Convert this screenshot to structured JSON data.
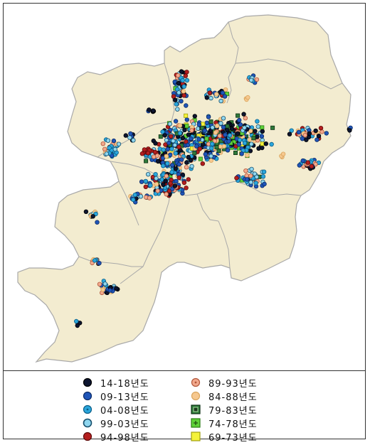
{
  "legend": {
    "items": [
      {
        "label": "14-18년도",
        "fill": "#0d1530",
        "border": "#000000",
        "marker": "dot"
      },
      {
        "label": "09-13년도",
        "fill": "#1f55b8",
        "border": "#0c2a66",
        "marker": "dot"
      },
      {
        "label": "04-08년도",
        "fill": "#2aa6dc",
        "border": "#0b5d86",
        "marker": "dot-center"
      },
      {
        "label": "99-03년도",
        "fill": "#8fd6ef",
        "border": "#174f6c",
        "marker": "ring"
      },
      {
        "label": "94-98년도",
        "fill": "#b41e1e",
        "border": "#5e0a0a",
        "marker": "dot"
      },
      {
        "label": "89-93년도",
        "fill": "#f2a98d",
        "border": "#b0563a",
        "marker": "dot-center"
      },
      {
        "label": "84-88년도",
        "fill": "#f6c88f",
        "border": "#d9a55e",
        "marker": "dot"
      },
      {
        "label": "79-83년도",
        "fill": "#2f7a3a",
        "border": "#0e3014",
        "marker": "square-inner"
      },
      {
        "label": "74-78년도",
        "fill": "#5fd23a",
        "border": "#2b7d14",
        "marker": "square-plus"
      },
      {
        "label": "69-73년도",
        "fill": "#f4f23a",
        "border": "#a0a010",
        "marker": "square"
      }
    ]
  },
  "map": {
    "land_color": "#f3ecd0",
    "boundary_color": "#a9a9a9"
  }
}
